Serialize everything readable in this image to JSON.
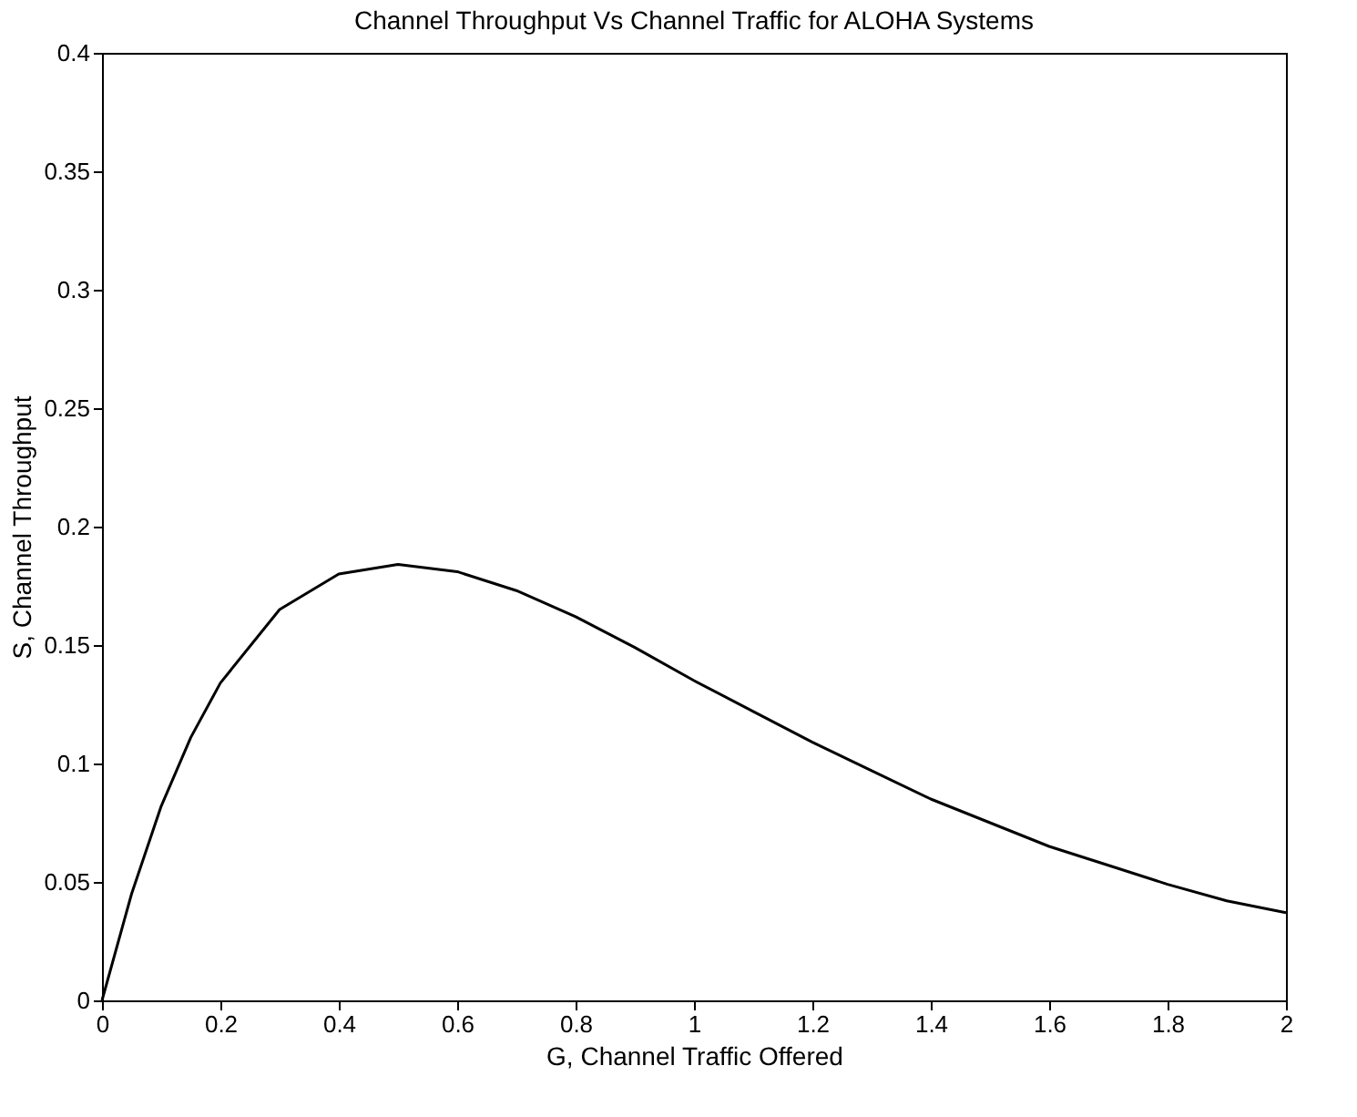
{
  "chart_data": {
    "type": "line",
    "title": "Channel Throughput Vs Channel Traffic for ALOHA Systems",
    "xlabel": "G, Channel Traffic Offered",
    "ylabel": "S, Channel Throughput",
    "x": [
      0,
      0.05,
      0.1,
      0.15,
      0.2,
      0.3,
      0.4,
      0.5,
      0.6,
      0.7,
      0.8,
      0.9,
      1.0,
      1.1,
      1.2,
      1.3,
      1.4,
      1.5,
      1.6,
      1.7,
      1.8,
      1.9,
      2.0
    ],
    "series": [
      {
        "color": "#000000",
        "values": [
          0,
          0.045,
          0.082,
          0.111,
          0.134,
          0.165,
          0.18,
          0.184,
          0.181,
          0.173,
          0.162,
          0.149,
          0.135,
          0.122,
          0.109,
          0.097,
          0.085,
          0.075,
          0.065,
          0.057,
          0.049,
          0.042,
          0.037
        ]
      }
    ],
    "xlim": [
      0,
      2
    ],
    "xticks": [
      0,
      0.2,
      0.4,
      0.6,
      0.8,
      1,
      1.2,
      1.4,
      1.6,
      1.8,
      2
    ],
    "ylim": [
      0,
      0.4
    ],
    "yticks": [
      0,
      0.05,
      0.1,
      0.15,
      0.2,
      0.25,
      0.3,
      0.35,
      0.4
    ],
    "grid": false,
    "legend": false,
    "marker": "none",
    "line_style": "solid"
  }
}
